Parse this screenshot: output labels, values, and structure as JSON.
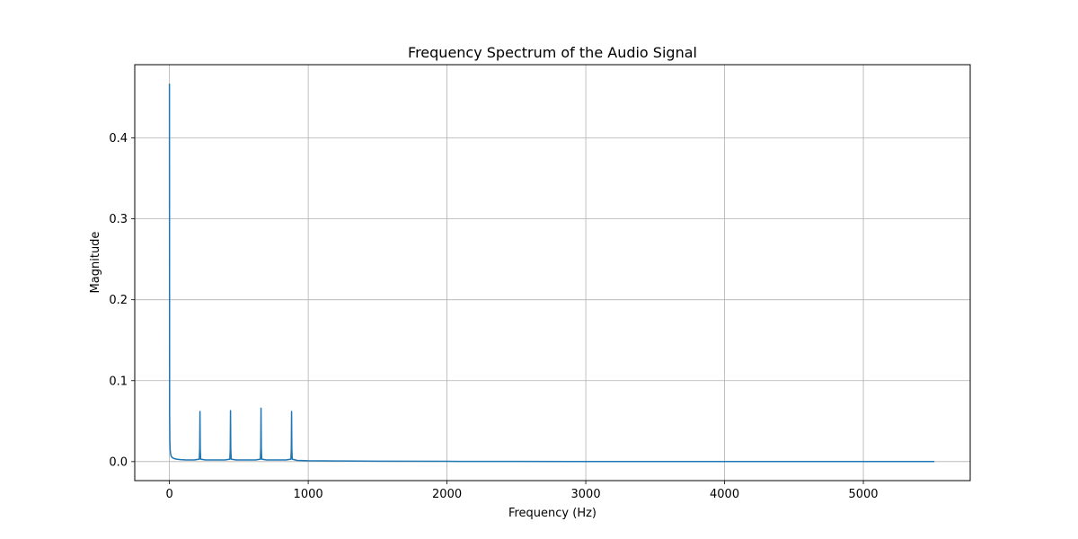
{
  "chart_data": {
    "type": "line",
    "title": "Frequency Spectrum of the Audio Signal",
    "xlabel": "Frequency (Hz)",
    "ylabel": "Magnitude",
    "xlim": [
      -250,
      5770
    ],
    "ylim": [
      -0.0235,
      0.4905
    ],
    "xticks": [
      0,
      1000,
      2000,
      3000,
      4000,
      5000
    ],
    "xtick_labels": [
      "0",
      "1000",
      "2000",
      "3000",
      "4000",
      "5000"
    ],
    "yticks": [
      0.0,
      0.1,
      0.2,
      0.3,
      0.4
    ],
    "ytick_labels": [
      "0.0",
      "0.1",
      "0.2",
      "0.3",
      "0.4"
    ],
    "grid": true,
    "line_color": "#1f77b4",
    "series": [
      {
        "x": [
          0,
          1,
          3,
          5,
          8,
          12,
          16,
          20,
          30,
          50,
          80,
          120,
          180,
          215,
          218,
          220,
          222,
          225,
          260,
          320,
          400,
          435,
          438,
          440,
          442,
          445,
          480,
          560,
          620,
          655,
          658,
          660,
          662,
          665,
          700,
          780,
          840,
          875,
          878,
          880,
          882,
          885,
          920,
          1000,
          1200,
          1500,
          2000,
          2500,
          3000,
          3500,
          4000,
          4500,
          5000,
          5512
        ],
        "y": [
          0.467,
          0.06,
          0.025,
          0.015,
          0.01,
          0.007,
          0.006,
          0.005,
          0.004,
          0.003,
          0.0025,
          0.002,
          0.002,
          0.003,
          0.015,
          0.062,
          0.015,
          0.003,
          0.002,
          0.002,
          0.002,
          0.003,
          0.015,
          0.063,
          0.015,
          0.003,
          0.002,
          0.002,
          0.002,
          0.003,
          0.016,
          0.066,
          0.016,
          0.003,
          0.002,
          0.002,
          0.002,
          0.003,
          0.015,
          0.062,
          0.015,
          0.003,
          0.0015,
          0.001,
          0.0008,
          0.0005,
          0.0003,
          0.0002,
          0.0001,
          0.0001,
          8e-05,
          5e-05,
          3e-05,
          2e-05
        ]
      }
    ]
  }
}
